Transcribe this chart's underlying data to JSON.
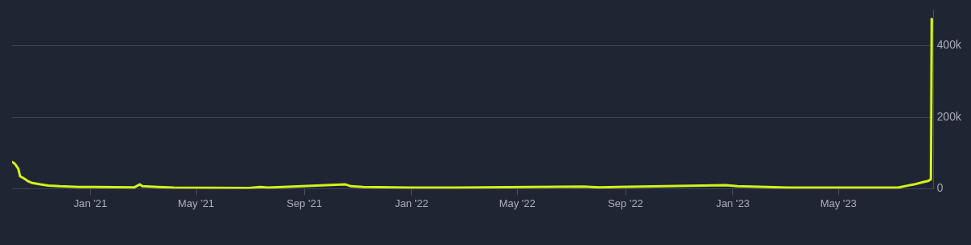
{
  "chart_data": {
    "type": "line",
    "x": [
      "2020-10-04",
      "2020-10-07",
      "2020-10-11",
      "2020-10-13",
      "2020-10-18",
      "2020-10-22",
      "2020-10-27",
      "2020-11-05",
      "2020-11-14",
      "2020-11-27",
      "2020-12-19",
      "2021-01-06",
      "2021-02-20",
      "2021-02-26",
      "2021-03-01",
      "2021-03-19",
      "2021-04-06",
      "2021-06-30",
      "2021-07-13",
      "2021-07-22",
      "2021-10-18",
      "2021-10-24",
      "2021-11-07",
      "2021-12-30",
      "2022-02-22",
      "2022-07-15",
      "2022-08-02",
      "2022-12-24",
      "2023-01-06",
      "2023-03-05",
      "2023-07-08",
      "2023-07-17",
      "2023-07-26",
      "2023-08-04",
      "2023-08-11",
      "2023-08-14",
      "2023-08-15"
    ],
    "series": [
      {
        "color": "#d4f21c",
        "values": [
          75000,
          70000,
          56000,
          35000,
          28000,
          21000,
          16000,
          12000,
          9000,
          7000,
          5000,
          5000,
          4000,
          12000,
          7000,
          5000,
          3000,
          2000,
          5000,
          3000,
          12000,
          7000,
          5000,
          3000,
          3000,
          6000,
          4000,
          10000,
          7000,
          3000,
          3000,
          8000,
          12000,
          18000,
          22000,
          26000,
          475000
        ]
      }
    ],
    "xlim": [
      "2020-10-04",
      "2023-08-17"
    ],
    "xticks": [
      {
        "value": "2021-01-01",
        "label": "Jan '21"
      },
      {
        "value": "2021-05-01",
        "label": "May '21"
      },
      {
        "value": "2021-09-01",
        "label": "Sep '21"
      },
      {
        "value": "2022-01-01",
        "label": "Jan '22"
      },
      {
        "value": "2022-05-01",
        "label": "May '22"
      },
      {
        "value": "2022-09-01",
        "label": "Sep '22"
      },
      {
        "value": "2023-01-01",
        "label": "Jan '23"
      },
      {
        "value": "2023-05-01",
        "label": "May '23"
      }
    ],
    "ylim": [
      0,
      500000
    ],
    "yticks": [
      {
        "value": 0,
        "label": "0"
      },
      {
        "value": 200000,
        "label": "200k"
      },
      {
        "value": 400000,
        "label": "400k"
      }
    ],
    "grid": "y",
    "legend": false,
    "marker": "none",
    "line_style": "solid"
  }
}
